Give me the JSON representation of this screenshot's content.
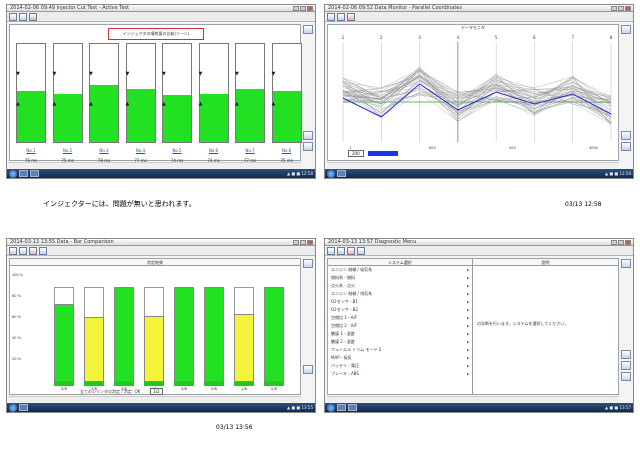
{
  "captions": {
    "top": "インジェクターには、問題が無いと思われます。",
    "top_time": "03/13 12:58",
    "bottom_left_time": "03/13 13:56"
  },
  "panel1": {
    "title_text": "2014-02-06 09:49 Injector Cut Test - Active Test",
    "banner": "インジェクタの噴射量の比較(リーン)",
    "injectors": [
      {
        "label": "No.1",
        "value": "76 ms",
        "level": 0.52
      },
      {
        "label": "No.2",
        "value": "75 ms",
        "level": 0.49
      },
      {
        "label": "No.3",
        "value": "78 ms",
        "level": 0.58
      },
      {
        "label": "No.4",
        "value": "77 ms",
        "level": 0.54
      },
      {
        "label": "No.5",
        "value": "74 ms",
        "level": 0.48
      },
      {
        "label": "No.6",
        "value": "74 ms",
        "level": 0.49
      },
      {
        "label": "No.7",
        "value": "77 ms",
        "level": 0.54
      },
      {
        "label": "No.8",
        "value": "75 ms",
        "level": 0.52
      }
    ]
  },
  "panel2": {
    "title_text": "2014-02-06 09:52 Data Monitor - Parallel Coordinates",
    "header": "データモニタ",
    "axis_ticks": [
      "1",
      "2",
      "3",
      "4",
      "5",
      "6",
      "7",
      "8"
    ],
    "legend_value": "200",
    "bottom_labels": [
      "1",
      "600",
      "500",
      "4000"
    ],
    "series_colors": {
      "highlight": "#2b2bd8",
      "band": "#9a9a9a",
      "ref": "#2ca02c"
    }
  },
  "panel3": {
    "title_text": "2014-03-13 13:55 Data - Bar Comparison",
    "header": "判定結果",
    "yticks": [
      "100 %",
      "80 %",
      "60 %",
      "40 %",
      "20 %"
    ],
    "bars": [
      {
        "value": 0.82,
        "color": "g",
        "label": "0/8"
      },
      {
        "value": 0.68,
        "color": "y",
        "label": "1/8"
      },
      {
        "value": 1.0,
        "color": "g",
        "label": "0/8"
      },
      {
        "value": 0.7,
        "color": "y",
        "label": "1/8"
      },
      {
        "value": 1.0,
        "color": "g",
        "label": "0/8"
      },
      {
        "value": 1.0,
        "color": "g",
        "label": "0/8"
      },
      {
        "value": 0.72,
        "color": "y",
        "label": "1/8"
      },
      {
        "value": 1.0,
        "color": "g",
        "label": "0/8"
      }
    ],
    "footer_text": "全てのシリンダの判定 / 判定: OK",
    "footer_box": "1/2"
  },
  "panel4": {
    "title_text": "2014-03-13 13:57 Diagnostic Menu",
    "left_header": "システム選択",
    "right_header": "説明",
    "items": [
      {
        "label": "エンジン 制御 / 吸気系",
        "ar": "▸"
      },
      {
        "label": "  燃料系 - 燃料",
        "ar": "▸"
      },
      {
        "label": "  点火系 - 点火",
        "ar": "▸"
      },
      {
        "label": "エンジン 制御 / 排気系",
        "ar": "▸"
      },
      {
        "label": "  O2センサ - B1",
        "ar": "▸"
      },
      {
        "label": "  O2センサ - B2",
        "ar": "▸"
      },
      {
        "label": "  空燃比 1 - A/F",
        "ar": "▸"
      },
      {
        "label": "  空燃比 2 - A/F",
        "ar": "▸"
      },
      {
        "label": "  触媒 1 - 温度",
        "ar": "▸"
      },
      {
        "label": "  触媒 2 - 温度",
        "ar": "▸"
      },
      {
        "label": "フューエル トリム モード 2",
        "ar": "▸"
      },
      {
        "label": "  MAP - 吸気",
        "ar": "▸"
      },
      {
        "label": "バッテリ - 電圧",
        "ar": "▸"
      },
      {
        "label": "ブレーキ - ABS",
        "ar": "▸"
      }
    ],
    "right_text": "の診断を行います。システムを選択してください。"
  }
}
